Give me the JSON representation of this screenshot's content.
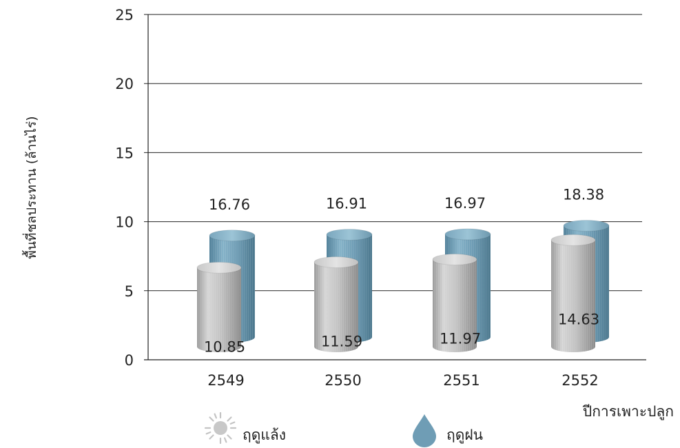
{
  "chart_data": {
    "type": "bar",
    "style": "3d-cylinder",
    "categories": [
      "2549",
      "2550",
      "2551",
      "2552"
    ],
    "series": [
      {
        "name": "ฤดูแล้ง",
        "values": [
          10.85,
          11.59,
          11.97,
          14.63
        ],
        "color": "#b8b8b8",
        "icon": "sun-icon"
      },
      {
        "name": "ฤดูฝน",
        "values": [
          16.76,
          16.91,
          16.97,
          18.38
        ],
        "color": "#6f9db5",
        "icon": "water-drop-icon"
      }
    ],
    "title": "",
    "xlabel": "ปีการเพาะปลูก",
    "ylabel": "พื้นที่ชลประทาน (ล้านไร่)",
    "ylim": [
      0,
      25
    ],
    "yticks": [
      0,
      5,
      10,
      15,
      20,
      25
    ],
    "grid": true,
    "legend": "bottom"
  }
}
